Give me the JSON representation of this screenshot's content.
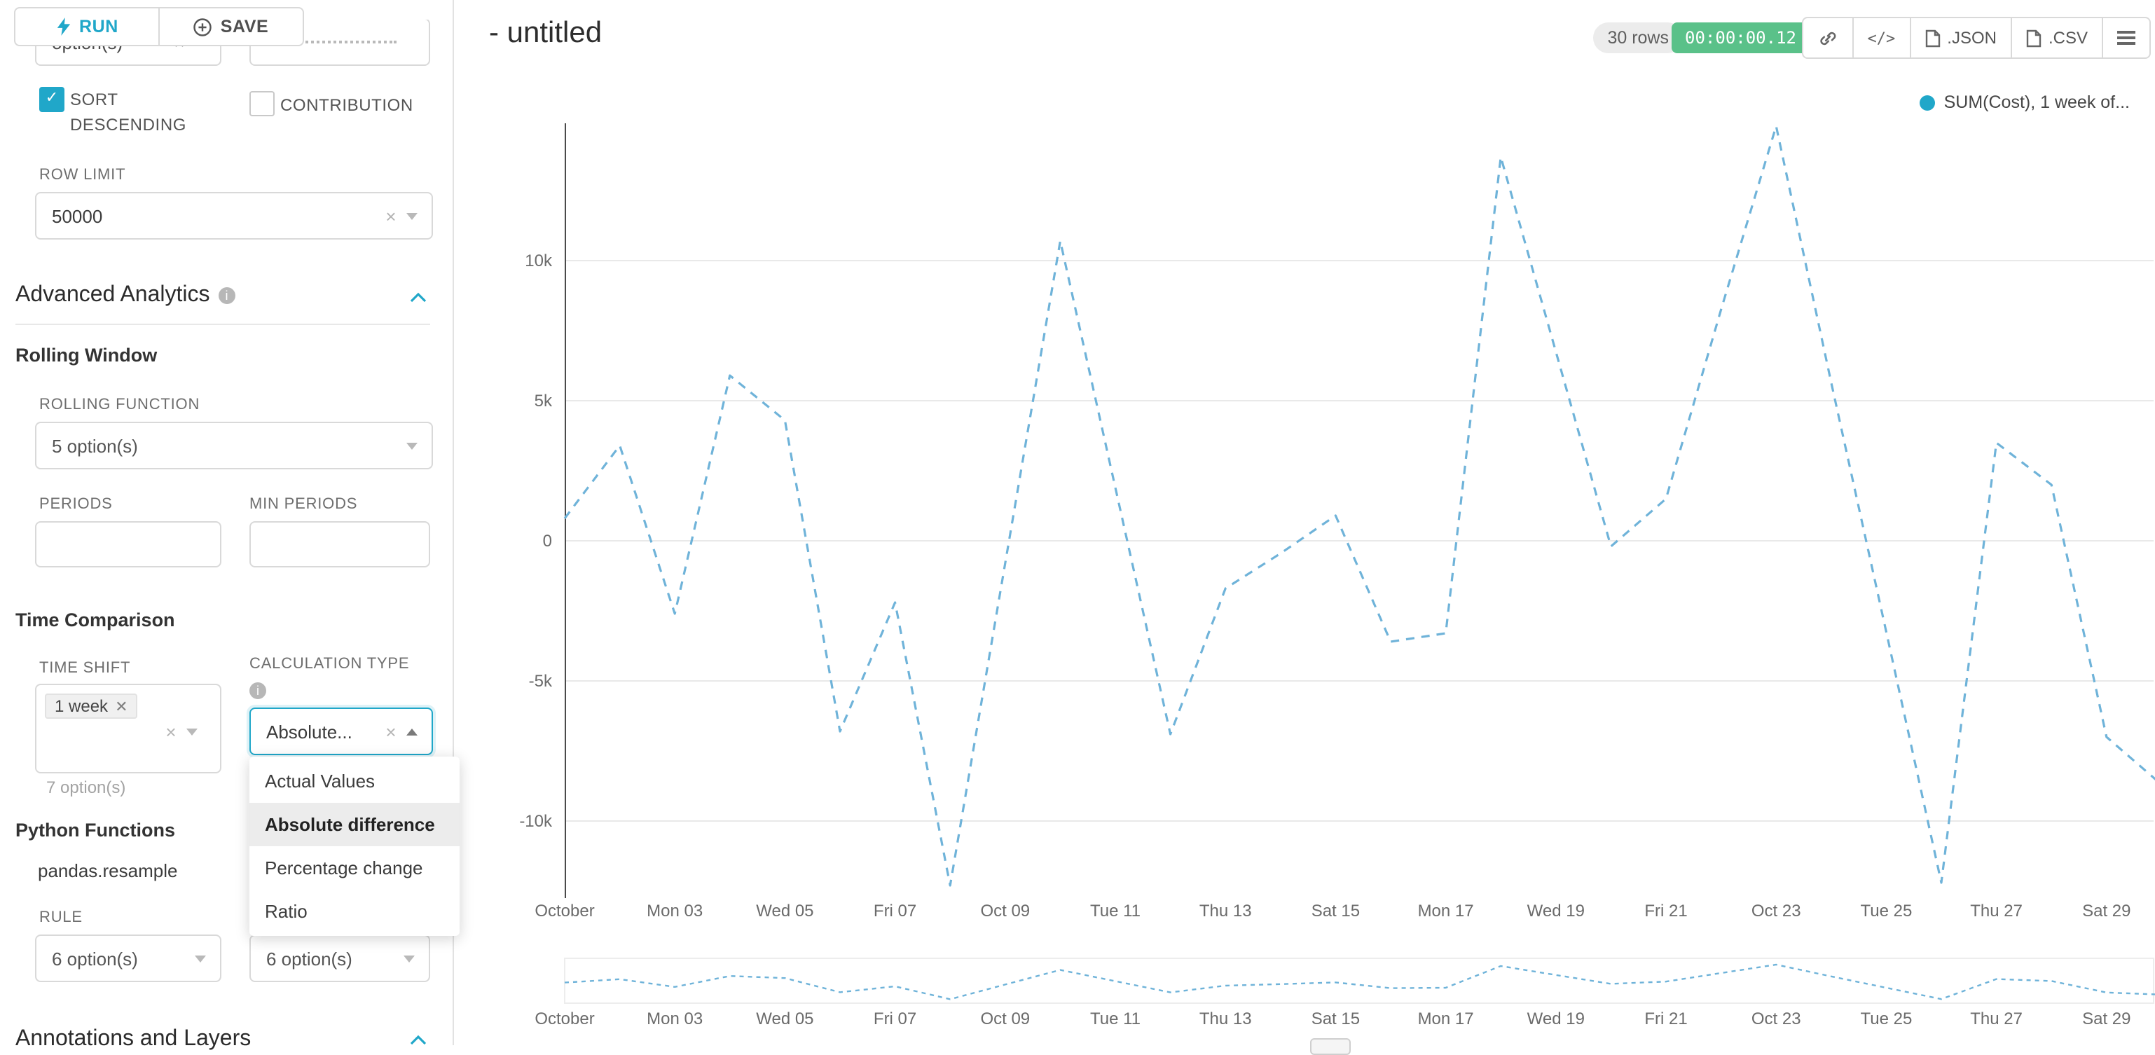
{
  "colors": {
    "accent": "#20a7c9",
    "timer_green": "#5ac189",
    "series_blue": "#6fb3d9",
    "legend_dot_blue": "#20a7c9"
  },
  "panel": {
    "run_label": "RUN",
    "save_label": "SAVE",
    "cropped_select_value": "option(s)",
    "sort_descending_label": "SORT DESCENDING",
    "contribution_label": "CONTRIBUTION",
    "row_limit_label": "ROW LIMIT",
    "row_limit_value": "50000",
    "advanced_analytics_title": "Advanced Analytics",
    "rolling_window_title": "Rolling Window",
    "rolling_function_label": "ROLLING FUNCTION",
    "rolling_function_value": "5 option(s)",
    "periods_label": "PERIODS",
    "min_periods_label": "MIN PERIODS",
    "time_comparison_title": "Time Comparison",
    "time_shift_label": "TIME SHIFT",
    "time_shift_tag": "1 week",
    "time_shift_helper": "7 option(s)",
    "calculation_type_label": "CALCULATION TYPE",
    "calculation_type_value": "Absolute...",
    "calculation_menu": [
      "Actual Values",
      "Absolute difference",
      "Percentage change",
      "Ratio"
    ],
    "calculation_menu_selected": "Absolute difference",
    "python_functions_title": "Python Functions",
    "pandas_resample_label": "pandas.resample",
    "rule_label": "RULE",
    "rule_value_left": "6 option(s)",
    "rule_value_right": "6 option(s)",
    "annotations_title": "Annotations and Layers"
  },
  "header": {
    "title": "- untitled",
    "rows_badge": "30 rows",
    "timer_badge": "00:00:00.12",
    "json_label": ".JSON",
    "csv_label": ".CSV"
  },
  "legend": {
    "label": "SUM(Cost), 1 week of..."
  },
  "chart_data": {
    "type": "line",
    "title": "",
    "legend_position": "top-right",
    "grid": true,
    "line_style": "dashed",
    "ylim": [
      -15000,
      15000
    ],
    "y_ticks": [
      {
        "label": "10k",
        "value": 10000
      },
      {
        "label": "5k",
        "value": 5000
      },
      {
        "label": "0",
        "value": 0
      },
      {
        "label": "-5k",
        "value": -5000
      },
      {
        "label": "-10k",
        "value": -10000
      }
    ],
    "x_tick_labels": [
      "October",
      "Mon 03",
      "Wed 05",
      "Fri 07",
      "Oct 09",
      "Tue 11",
      "Thu 13",
      "Sat 15",
      "Mon 17",
      "Wed 19",
      "Fri 21",
      "Oct 23",
      "Tue 25",
      "Thu 27",
      "Sat 29"
    ],
    "x_points_per_tick": 2,
    "series": [
      {
        "name": "SUM(Cost), 1 week of...",
        "color": "#6fb3d9",
        "values": [
          800,
          3400,
          -2600,
          5900,
          4300,
          -6800,
          -2200,
          -12300,
          -800,
          10700,
          1900,
          -6900,
          -1700,
          -450,
          900,
          -3600,
          -3300,
          13700,
          6750,
          -200,
          1500,
          8250,
          14800,
          5650,
          -3250,
          -12200,
          3500,
          2000,
          -7000,
          -8700
        ]
      }
    ],
    "mini_map": true
  }
}
